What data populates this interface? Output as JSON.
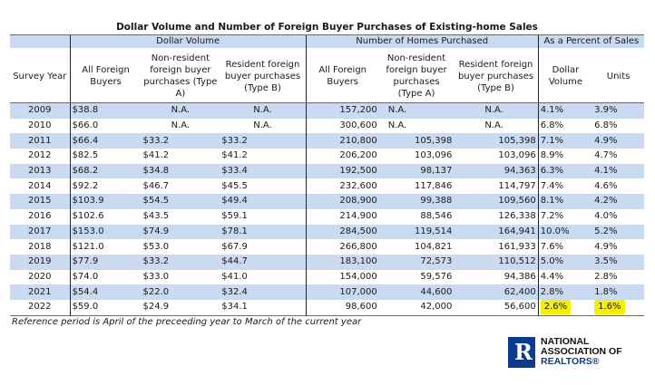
{
  "title": "Dollar Volume and Number of Foreign Buyer Purchases of Existing-home Sales",
  "groups": {
    "dollar_volume": "Dollar Volume",
    "homes": "Number of Homes Purchased",
    "percent": "As a Percent of Sales"
  },
  "headers": {
    "year": "Survey Year",
    "dv_all": "All Foreign Buyers",
    "dv_nonres": "Non-resident foreign buyer purchases (Type A)",
    "dv_res": "Resident foreign buyer purchases (Type B)",
    "h_all": "All Foreign Buyers",
    "h_nonres": "Non-resident foreign buyer purchases (Type A)",
    "h_res": "Resident foreign buyer purchases (Type B)",
    "p_dollar": "Dollar Volume",
    "p_units": "Units"
  },
  "rows": [
    {
      "year": "2009",
      "dv_all": "$38.8",
      "dv_a": "N.A.",
      "dv_b": "N.A.",
      "h_all": "157,200",
      "h_a": "N.A.",
      "h_b": "N.A.",
      "p_d": "4.1%",
      "p_u": "3.9%"
    },
    {
      "year": "2010",
      "dv_all": "$66.0",
      "dv_a": "N.A.",
      "dv_b": "N.A.",
      "h_all": "300,600",
      "h_a": "N.A.",
      "h_b": "N.A.",
      "p_d": "6.8%",
      "p_u": "6.8%"
    },
    {
      "year": "2011",
      "dv_all": "$66.4",
      "dv_a": "$33.2",
      "dv_b": "$33.2",
      "h_all": "210,800",
      "h_a": "105,398",
      "h_b": "105,398",
      "p_d": "7.1%",
      "p_u": "4.9%"
    },
    {
      "year": "2012",
      "dv_all": "$82.5",
      "dv_a": "$41.2",
      "dv_b": "$41.2",
      "h_all": "206,200",
      "h_a": "103,096",
      "h_b": "103,096",
      "p_d": "8.9%",
      "p_u": "4.7%"
    },
    {
      "year": "2013",
      "dv_all": "$68.2",
      "dv_a": "$34.8",
      "dv_b": "$33.4",
      "h_all": "192,500",
      "h_a": "98,137",
      "h_b": "94,363",
      "p_d": "6.3%",
      "p_u": "4.1%"
    },
    {
      "year": "2014",
      "dv_all": "$92.2",
      "dv_a": "$46.7",
      "dv_b": "$45.5",
      "h_all": "232,600",
      "h_a": "117,846",
      "h_b": "114,797",
      "p_d": "7.4%",
      "p_u": "4.6%"
    },
    {
      "year": "2015",
      "dv_all": "$103.9",
      "dv_a": "$54.5",
      "dv_b": "$49.4",
      "h_all": "208,900",
      "h_a": "99,388",
      "h_b": "109,560",
      "p_d": "8.1%",
      "p_u": "4.2%"
    },
    {
      "year": "2016",
      "dv_all": "$102.6",
      "dv_a": "$43.5",
      "dv_b": "$59.1",
      "h_all": "214,900",
      "h_a": "88,546",
      "h_b": "126,338",
      "p_d": "7.2%",
      "p_u": "4.0%"
    },
    {
      "year": "2017",
      "dv_all": "$153.0",
      "dv_a": "$74.9",
      "dv_b": "$78.1",
      "h_all": "284,500",
      "h_a": "119,514",
      "h_b": "164,941",
      "p_d": "10.0%",
      "p_u": "5.2%"
    },
    {
      "year": "2018",
      "dv_all": "$121.0",
      "dv_a": "$53.0",
      "dv_b": "$67.9",
      "h_all": "266,800",
      "h_a": "104,821",
      "h_b": "161,933",
      "p_d": "7.6%",
      "p_u": "4.9%"
    },
    {
      "year": "2019",
      "dv_all": "$77.9",
      "dv_a": "$33.2",
      "dv_b": "$44.7",
      "h_all": "183,100",
      "h_a": "72,573",
      "h_b": "110,512",
      "p_d": "5.0%",
      "p_u": "3.5%"
    },
    {
      "year": "2020",
      "dv_all": "$74.0",
      "dv_a": "$33.0",
      "dv_b": "$41.0",
      "h_all": "154,000",
      "h_a": "59,576",
      "h_b": "94,386",
      "p_d": "4.4%",
      "p_u": "2.8%"
    },
    {
      "year": "2021",
      "dv_all": "$54.4",
      "dv_a": "$22.0",
      "dv_b": "$32.4",
      "h_all": "107,000",
      "h_a": "44,600",
      "h_b": "62,400",
      "p_d": "2.8%",
      "p_u": "1.8%"
    },
    {
      "year": "2022",
      "dv_all": "$59.0",
      "dv_a": "$24.9",
      "dv_b": "$34.1",
      "h_all": "98,600",
      "h_a": "42,000",
      "h_b": "56,600",
      "p_d": "2.6%",
      "p_u": "1.6%"
    }
  ],
  "note": "Reference period is April of the preceeding year to March of the current year",
  "logo": {
    "mark": "R",
    "line1": "NATIONAL",
    "line2": "ASSOCIATION OF",
    "line3": "REALTORS®"
  },
  "highlight_color": "#f4f000",
  "shade_color": "#c9daf1"
}
